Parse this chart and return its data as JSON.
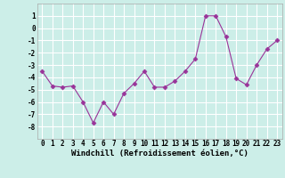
{
  "x": [
    0,
    1,
    2,
    3,
    4,
    5,
    6,
    7,
    8,
    9,
    10,
    11,
    12,
    13,
    14,
    15,
    16,
    17,
    18,
    19,
    20,
    21,
    22,
    23
  ],
  "y": [
    -3.5,
    -4.7,
    -4.8,
    -4.7,
    -6.0,
    -7.7,
    -6.0,
    -7.0,
    -5.3,
    -4.5,
    -3.5,
    -4.8,
    -4.8,
    -4.3,
    -3.5,
    -2.5,
    1.0,
    1.0,
    -0.7,
    -4.1,
    -4.6,
    -3.0,
    -1.7,
    -1.0
  ],
  "line_color": "#993399",
  "marker": "D",
  "marker_size": 2.5,
  "xlabel": "Windchill (Refroidissement éolien,°C)",
  "xlim_min": -0.5,
  "xlim_max": 23.5,
  "ylim": [
    -9,
    2
  ],
  "yticks": [
    -8,
    -7,
    -6,
    -5,
    -4,
    -3,
    -2,
    -1,
    0,
    1
  ],
  "xtick_labels": [
    "0",
    "1",
    "2",
    "3",
    "4",
    "5",
    "6",
    "7",
    "8",
    "9",
    "10",
    "11",
    "12",
    "13",
    "14",
    "15",
    "16",
    "17",
    "18",
    "19",
    "20",
    "21",
    "22",
    "23"
  ],
  "bg_color": "#cceee8",
  "grid_color": "#ffffff",
  "label_fontsize": 6.5,
  "tick_fontsize": 5.5,
  "spine_color": "#aaaaaa"
}
